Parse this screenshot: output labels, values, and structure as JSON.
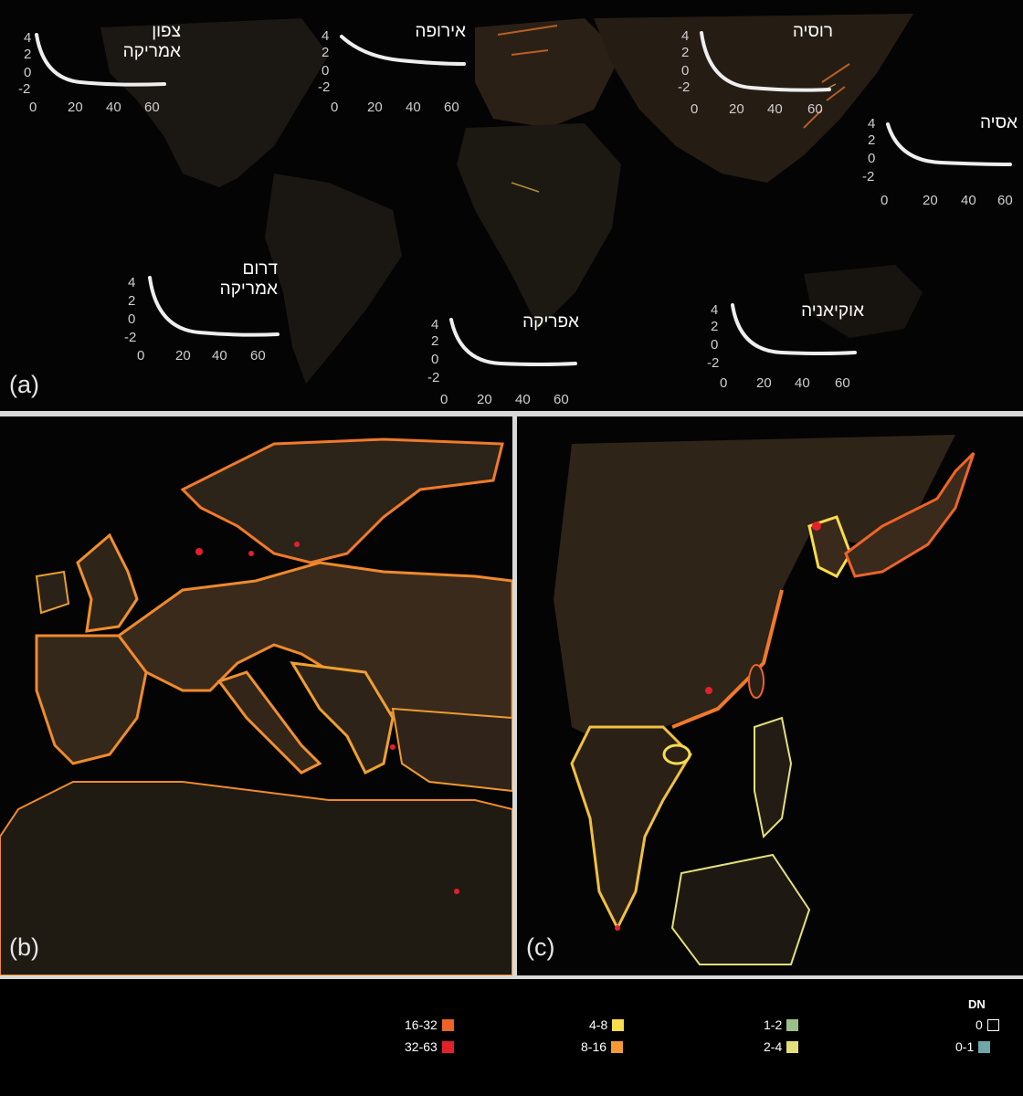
{
  "panels": {
    "a": {
      "label": "(a)"
    },
    "b": {
      "label": "(b)"
    },
    "c": {
      "label": "(c)"
    }
  },
  "regions": {
    "north_america": {
      "name": "צפון\nאמריקה",
      "yticks": [
        "4",
        "2",
        "0",
        "-2"
      ],
      "xticks": [
        "0",
        "20",
        "40",
        "60"
      ]
    },
    "europe": {
      "name": "אירופה",
      "yticks": [
        "4",
        "2",
        "0",
        "-2"
      ],
      "xticks": [
        "0",
        "20",
        "40",
        "60"
      ]
    },
    "russia": {
      "name": "רוסיה",
      "yticks": [
        "4",
        "2",
        "0",
        "-2"
      ],
      "xticks": [
        "0",
        "20",
        "40",
        "60"
      ]
    },
    "asia": {
      "name": "אסיה",
      "yticks": [
        "4",
        "2",
        "0",
        "-2"
      ],
      "xticks": [
        "0",
        "20",
        "40",
        "60"
      ]
    },
    "south_america": {
      "name": "דרום\nאמריקה",
      "yticks": [
        "4",
        "2",
        "0",
        "-2"
      ],
      "xticks": [
        "0",
        "20",
        "40",
        "60"
      ]
    },
    "africa": {
      "name": "אפריקה",
      "yticks": [
        "4",
        "2",
        "0",
        "-2"
      ],
      "xticks": [
        "0",
        "20",
        "40",
        "60"
      ]
    },
    "oceania": {
      "name": "אוקיאניה",
      "yticks": [
        "4",
        "2",
        "0",
        "-2"
      ],
      "xticks": [
        "0",
        "20",
        "40",
        "60"
      ]
    }
  },
  "legend": {
    "title": "DN",
    "items": [
      {
        "label": "0",
        "color": "#ffffff",
        "hollow": true
      },
      {
        "label": "0-1",
        "color": "#6fa7a8"
      },
      {
        "label": "1-2",
        "color": "#9bbf88"
      },
      {
        "label": "2-4",
        "color": "#e3e07a"
      },
      {
        "label": "4-8",
        "color": "#f8dc4a"
      },
      {
        "label": "8-16",
        "color": "#f59a32"
      },
      {
        "label": "16-32",
        "color": "#ec6428"
      },
      {
        "label": "32-63",
        "color": "#e5202a"
      }
    ]
  },
  "colors": {
    "background": "#000000",
    "land": "#2a2418",
    "land_lit": "#4a3220",
    "coast_bright": "#f0a030",
    "curve": "#eeeeee",
    "separator": "#d8d8d8"
  }
}
